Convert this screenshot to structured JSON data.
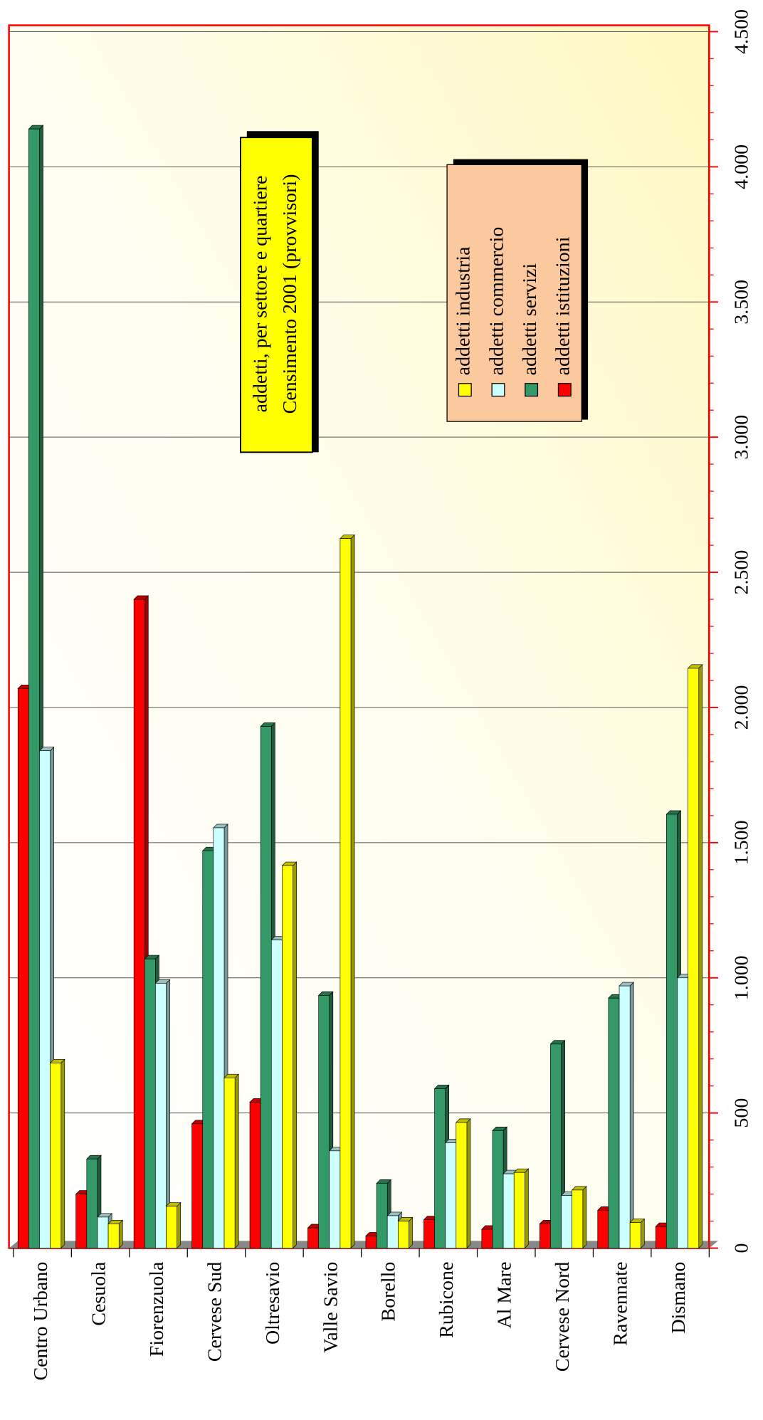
{
  "chart_data": {
    "type": "bar",
    "title": "addetti, per settore e quartiere",
    "subtitle": "Censimento 2001 (provvisori)",
    "categories": [
      "Centro Urbano",
      "Cesuola",
      "Fiorenzuola",
      "Cervese Sud",
      "Oltresavio",
      "Valle Savio",
      "Borello",
      "Rubicone",
      "Al Mare",
      "Cervese Nord",
      "Ravennate",
      "Dismano"
    ],
    "series": [
      {
        "name": "addetti industria",
        "color": "#ffff00",
        "values": [
          685,
          90,
          155,
          630,
          1415,
          2625,
          100,
          465,
          280,
          215,
          95,
          2145
        ]
      },
      {
        "name": "addetti commercio",
        "color": "#ccffff",
        "values": [
          1840,
          115,
          980,
          1555,
          1140,
          360,
          120,
          390,
          275,
          195,
          970,
          1000
        ]
      },
      {
        "name": "addetti servizi",
        "color": "#339966",
        "values": [
          4140,
          330,
          1070,
          1470,
          1930,
          935,
          240,
          590,
          435,
          755,
          925,
          1605
        ]
      },
      {
        "name": "addetti istituzioni",
        "color": "#ff0000",
        "values": [
          2070,
          200,
          2400,
          460,
          540,
          75,
          45,
          105,
          70,
          90,
          140,
          80
        ]
      }
    ],
    "ylim": [
      0,
      4500
    ],
    "yticks": [
      0,
      500,
      {
        "value": 1000,
        "label": "1.000"
      },
      {
        "value": 1500,
        "label": "1.500"
      },
      {
        "value": 2000,
        "label": "2.000"
      },
      {
        "value": 2500,
        "label": "2.500"
      },
      {
        "value": 3000,
        "label": "3.000"
      },
      {
        "value": 3500,
        "label": "3.500"
      },
      {
        "value": 4000,
        "label": "4.000"
      },
      {
        "value": 4500,
        "label": "4.500"
      }
    ],
    "grid": true
  }
}
